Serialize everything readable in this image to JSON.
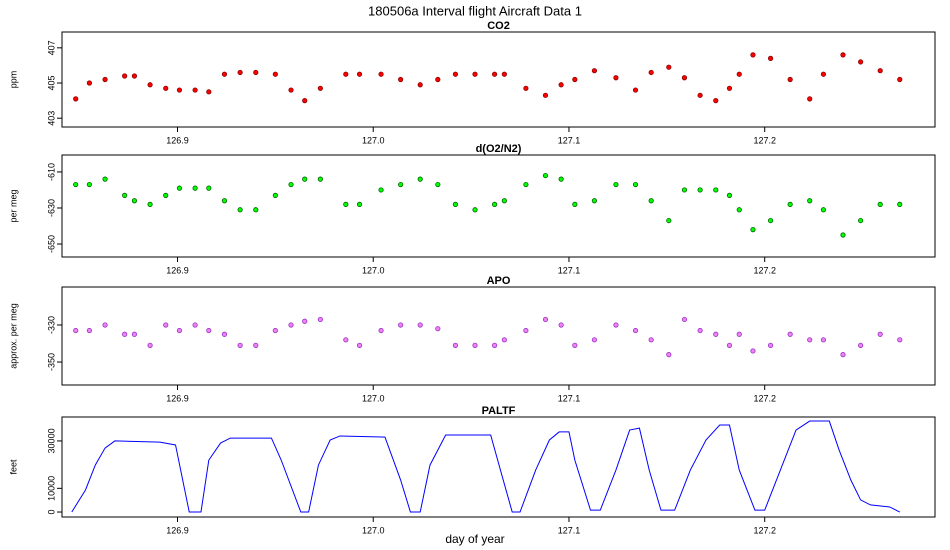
{
  "title": "180506a   Interval flight Aircraft Data 1",
  "xlabel": "day of year",
  "chart_data": [
    {
      "type": "scatter",
      "title": "CO2",
      "ylabel": "ppm",
      "color": "#ff0000",
      "edge_color": "#8b0000",
      "xlim": [
        126.841,
        127.287
      ],
      "ylim": [
        402.5,
        407.9
      ],
      "xticks": [
        126.9,
        {
          "value": 127,
          "label": "127.0"
        },
        127.1,
        127.2
      ],
      "yticks": [
        403,
        405,
        407
      ],
      "x": [
        126.848,
        126.855,
        126.863,
        126.873,
        126.878,
        126.886,
        126.894,
        126.901,
        126.909,
        126.916,
        126.924,
        126.932,
        126.94,
        126.95,
        126.958,
        126.965,
        126.973,
        126.986,
        126.993,
        127.004,
        127.014,
        127.024,
        127.033,
        127.042,
        127.052,
        127.062,
        127.067,
        127.078,
        127.088,
        127.096,
        127.103,
        127.113,
        127.124,
        127.134,
        127.142,
        127.151,
        127.159,
        127.167,
        127.175,
        127.182,
        127.187,
        127.194,
        127.203,
        127.213,
        127.223,
        127.23,
        127.24,
        127.249,
        127.259,
        127.269
      ],
      "values": [
        404.1,
        405,
        405.2,
        405.4,
        405.4,
        404.9,
        404.7,
        404.6,
        404.6,
        404.5,
        405.5,
        405.6,
        405.6,
        405.5,
        404.6,
        404,
        404.7,
        405.5,
        405.5,
        405.5,
        405.2,
        404.9,
        405.2,
        405.5,
        405.5,
        405.5,
        405.5,
        404.7,
        404.3,
        404.9,
        405.2,
        405.7,
        405.3,
        404.6,
        405.6,
        405.9,
        405.3,
        404.3,
        404,
        404.7,
        405.5,
        406.6,
        406.4,
        405.2,
        404.1,
        405.5,
        406.6,
        406.2,
        405.7,
        405.2
      ]
    },
    {
      "type": "scatter",
      "title": "d(O2/N2)",
      "ylabel": "per meg",
      "color": "#00ff00",
      "edge_color": "#006400",
      "xlim": [
        126.841,
        127.287
      ],
      "ylim": [
        -657.2,
        -600.6
      ],
      "xticks": [
        126.9,
        {
          "value": 127,
          "label": "127.0"
        },
        127.1,
        127.2
      ],
      "yticks": [
        -650,
        -630,
        -610
      ],
      "x": [
        126.848,
        126.855,
        126.863,
        126.873,
        126.878,
        126.886,
        126.894,
        126.901,
        126.909,
        126.916,
        126.924,
        126.932,
        126.94,
        126.95,
        126.958,
        126.965,
        126.973,
        126.986,
        126.993,
        127.004,
        127.014,
        127.024,
        127.033,
        127.042,
        127.052,
        127.062,
        127.067,
        127.078,
        127.088,
        127.096,
        127.103,
        127.113,
        127.124,
        127.134,
        127.142,
        127.151,
        127.159,
        127.167,
        127.175,
        127.182,
        127.187,
        127.194,
        127.203,
        127.213,
        127.223,
        127.23,
        127.24,
        127.249,
        127.259,
        127.269
      ],
      "values": [
        -617,
        -617,
        -614,
        -623,
        -626,
        -628,
        -623,
        -619,
        -619,
        -619,
        -626,
        -631,
        -631,
        -623,
        -617,
        -614,
        -614,
        -628,
        -628,
        -620,
        -617,
        -614,
        -617,
        -628,
        -631,
        -628,
        -626,
        -617,
        -612,
        -614,
        -628,
        -626,
        -617,
        -617,
        -626,
        -637,
        -620,
        -620,
        -620,
        -623,
        -631,
        -642,
        -637,
        -628,
        -626,
        -631,
        -645,
        -637,
        -628,
        -628
      ]
    },
    {
      "type": "scatter",
      "title": "APO",
      "ylabel": "approx. per meg",
      "color": "#ee82ee",
      "edge_color": "#9932cc",
      "xlim": [
        126.841,
        127.287
      ],
      "ylim": [
        -362.4,
        -309.5
      ],
      "xticks": [
        126.9,
        {
          "value": 127,
          "label": "127.0"
        },
        127.1,
        127.2
      ],
      "yticks": [
        -350,
        -330
      ],
      "x": [
        126.848,
        126.855,
        126.863,
        126.873,
        126.878,
        126.886,
        126.894,
        126.901,
        126.909,
        126.916,
        126.924,
        126.932,
        126.94,
        126.95,
        126.958,
        126.965,
        126.973,
        126.986,
        126.993,
        127.004,
        127.014,
        127.024,
        127.033,
        127.042,
        127.052,
        127.062,
        127.067,
        127.078,
        127.088,
        127.096,
        127.103,
        127.113,
        127.124,
        127.134,
        127.142,
        127.151,
        127.159,
        127.167,
        127.175,
        127.182,
        127.187,
        127.194,
        127.203,
        127.213,
        127.223,
        127.23,
        127.24,
        127.249,
        127.259,
        127.269
      ],
      "values": [
        -333,
        -333,
        -330,
        -335,
        -335,
        -341,
        -330,
        -333,
        -330,
        -333,
        -335,
        -341,
        -341,
        -333,
        -330,
        -328,
        -327,
        -338,
        -341,
        -333,
        -330,
        -330,
        -332,
        -341,
        -341,
        -341,
        -338,
        -333,
        -327,
        -330,
        -341,
        -338,
        -330,
        -333,
        -338,
        -346,
        -327,
        -333,
        -335,
        -341,
        -335,
        -344,
        -341,
        -335,
        -338,
        -338,
        -346,
        -341,
        -335,
        -338
      ]
    },
    {
      "type": "line",
      "title": "PALTF",
      "ylabel": "feet",
      "color": "#0000ff",
      "xlim": [
        126.841,
        127.287
      ],
      "ylim": [
        -2100,
        40100
      ],
      "xticks": [
        126.9,
        {
          "value": 127,
          "label": "127.0"
        },
        127.1,
        127.2
      ],
      "yticks": [
        0,
        10000,
        30000
      ],
      "x": [
        126.846,
        126.853,
        126.858,
        126.863,
        126.868,
        126.891,
        126.899,
        126.906,
        126.912,
        126.916,
        126.922,
        126.927,
        126.948,
        126.953,
        126.963,
        126.967,
        126.972,
        126.978,
        126.983,
        127.006,
        127.014,
        127.019,
        127.024,
        127.029,
        127.037,
        127.06,
        127.065,
        127.071,
        127.075,
        127.083,
        127.09,
        127.095,
        127.1,
        127.103,
        127.111,
        127.116,
        127.124,
        127.131,
        127.136,
        127.141,
        127.147,
        127.154,
        127.162,
        127.17,
        127.177,
        127.182,
        127.187,
        127.195,
        127.2,
        127.208,
        127.216,
        127.223,
        127.233,
        127.238,
        127.244,
        127.249,
        127.254,
        127.264,
        127.269
      ],
      "values": [
        0,
        9300,
        19800,
        27000,
        30000,
        29500,
        28300,
        0,
        0,
        21900,
        29100,
        31200,
        31200,
        21900,
        0,
        0,
        19800,
        30400,
        32100,
        31600,
        13500,
        0,
        0,
        19800,
        32500,
        32500,
        17700,
        0,
        0,
        17700,
        30400,
        33800,
        33800,
        21900,
        800,
        800,
        17700,
        34600,
        35400,
        17700,
        800,
        800,
        17700,
        30400,
        36700,
        36700,
        17700,
        800,
        800,
        17700,
        34600,
        38400,
        38400,
        26200,
        13500,
        5100,
        3000,
        2100,
        0
      ]
    }
  ]
}
